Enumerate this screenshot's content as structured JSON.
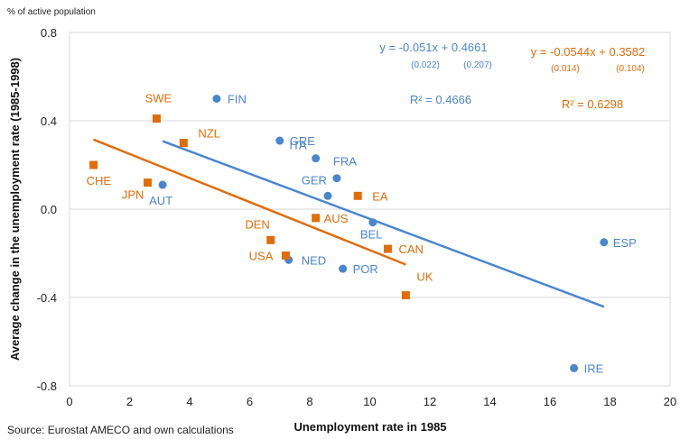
{
  "chart_data": {
    "type": "scatter",
    "unit_note": "% of active population",
    "xlabel": "Unemployment rate in 1985",
    "ylabel": "Average change in the unemployment rate (1985-1998)",
    "source": "Source: Eurostat AMECO and own calculations",
    "xlim": [
      0,
      20
    ],
    "ylim": [
      -0.8,
      0.8
    ],
    "xticks": [
      "0",
      "2",
      "4",
      "6",
      "8",
      "10",
      "12",
      "14",
      "16",
      "18",
      "20"
    ],
    "yticks": [
      "0.8",
      "0.4",
      "0.0",
      "-0.4",
      "-0.8"
    ],
    "grid": "horizontal",
    "colors": {
      "blue": "#4a86d0",
      "orange": "#e36c0a"
    },
    "series": [
      {
        "color": "#4a86d0",
        "marker": "circle",
        "points": [
          {
            "label": "FIN",
            "x": 4.9,
            "y": 0.5
          },
          {
            "label": "GRE",
            "x": 7.0,
            "y": 0.31
          },
          {
            "label": "ITA",
            "x": 8.2,
            "y": 0.23
          },
          {
            "label": "FRA",
            "x": 8.9,
            "y": 0.14
          },
          {
            "label": "GER",
            "x": 8.6,
            "y": 0.06
          },
          {
            "label": "AUT",
            "x": 3.1,
            "y": 0.11
          },
          {
            "label": "BEL",
            "x": 10.1,
            "y": -0.06
          },
          {
            "label": "NED",
            "x": 7.3,
            "y": -0.23
          },
          {
            "label": "POR",
            "x": 9.1,
            "y": -0.27
          },
          {
            "label": "ESP",
            "x": 17.8,
            "y": -0.15
          },
          {
            "label": "IRE",
            "x": 16.8,
            "y": -0.72
          }
        ],
        "trend": {
          "x": [
            3.1,
            17.8
          ],
          "y": [
            0.308,
            -0.442
          ]
        },
        "equation": "y = -0.051x + 0.4661",
        "se": [
          "(0.022)",
          "(0.207)"
        ],
        "r2": "R² = 0.4666"
      },
      {
        "color": "#e36c0a",
        "marker": "square",
        "points": [
          {
            "label": "SWE",
            "x": 2.9,
            "y": 0.41
          },
          {
            "label": "NZL",
            "x": 3.8,
            "y": 0.3
          },
          {
            "label": "CHE",
            "x": 0.8,
            "y": 0.2
          },
          {
            "label": "JPN",
            "x": 2.6,
            "y": 0.12
          },
          {
            "label": "EA",
            "x": 9.6,
            "y": 0.06
          },
          {
            "label": "AUS",
            "x": 8.2,
            "y": -0.04
          },
          {
            "label": "DEN",
            "x": 6.7,
            "y": -0.14
          },
          {
            "label": "USA",
            "x": 7.2,
            "y": -0.21
          },
          {
            "label": "CAN",
            "x": 10.6,
            "y": -0.18
          },
          {
            "label": "UK",
            "x": 11.2,
            "y": -0.39
          }
        ],
        "trend": {
          "x": [
            0.8,
            11.2
          ],
          "y": [
            0.315,
            -0.251
          ]
        },
        "equation": "y = -0.0544x + 0.3582",
        "se": [
          "(0.014)",
          "(0.104)"
        ],
        "r2": "R² = 0.6298"
      }
    ]
  }
}
